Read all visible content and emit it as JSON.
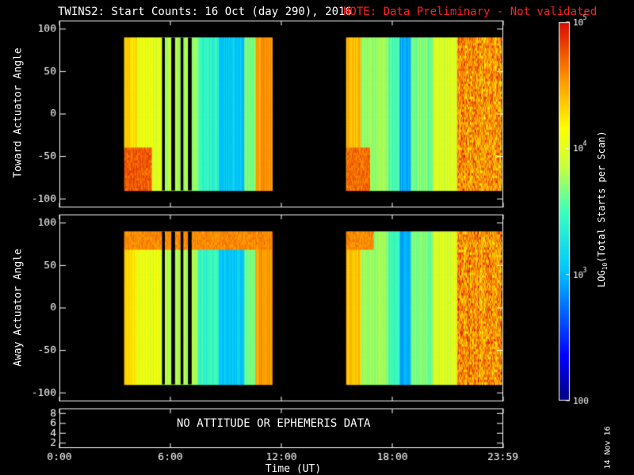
{
  "header": {
    "title": "TWINS2: Start Counts: 16 Oct (day 290), 2016",
    "note": "NOTE: Data Preliminary - Not validated",
    "note_color": "#ff2020"
  },
  "footer": {
    "nodata_text": "NO ATTITUDE OR EPHEMERIS DATA",
    "date_stamp": "14 Nov 16"
  },
  "chart_data": [
    {
      "type": "heatmap",
      "ylabel": "Toward Actuator Angle",
      "ylim": [
        -110,
        110
      ],
      "yticks": [
        100,
        50,
        0,
        -50,
        -100
      ],
      "xlim": [
        0,
        24
      ],
      "data_coverage_hours": [
        [
          3.5,
          11.5
        ],
        [
          15.5,
          23.9
        ]
      ],
      "y_data_range": [
        -90,
        90
      ]
    },
    {
      "type": "heatmap",
      "ylabel": "Away Actuator Angle",
      "ylim": [
        -110,
        110
      ],
      "yticks": [
        100,
        50,
        0,
        -50,
        -100
      ],
      "xlim": [
        0,
        24
      ],
      "data_coverage_hours": [
        [
          3.5,
          11.5
        ],
        [
          15.5,
          23.9
        ]
      ],
      "y_data_range": [
        -90,
        90
      ]
    },
    {
      "type": "line",
      "ylim": [
        1,
        9
      ],
      "yticks": [
        8,
        6,
        4,
        2
      ],
      "xlabel": "Time (UT)",
      "xticks": [
        "0:00",
        "6:00",
        "12:00",
        "18:00",
        "23:59"
      ]
    }
  ],
  "colorbar": {
    "scale": "log",
    "min": 100,
    "max": 100000,
    "tick_labels": [
      "10",
      "10",
      "10",
      "100"
    ],
    "tick_exponents": [
      "5",
      "4",
      "3",
      ""
    ],
    "label_main": "LOG",
    "label_sub": "10",
    "label_rest": "(Total Starts per Scan)"
  }
}
